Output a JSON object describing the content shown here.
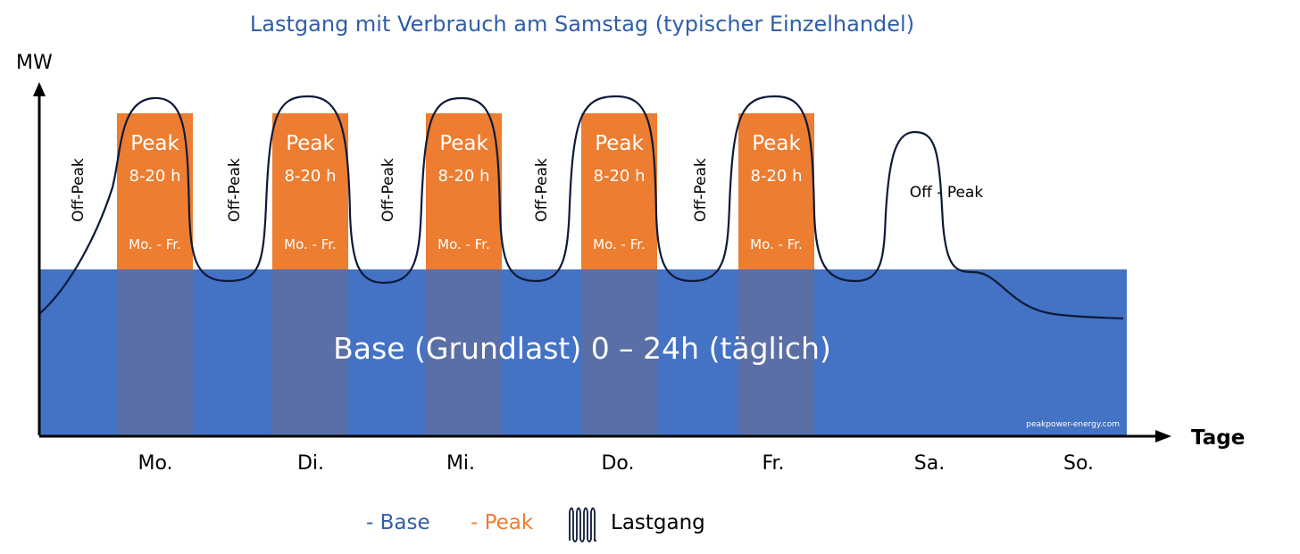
{
  "title": "Lastgang mit Verbrauch am Samstag (typischer Einzelhandel)",
  "y_axis_label": "MW",
  "x_axis_label": "Tage",
  "colors": {
    "base": "#4472c4",
    "peak": "#ed7d31",
    "overlap": "#5a6fa6",
    "curve": "#0d1a3a",
    "title": "#2f5ea8"
  },
  "base": {
    "label": "Base (Grundlast) 0 – 24h (täglich)"
  },
  "watermark": "peakpower-energy.com",
  "peak_blocks": [
    {
      "day": "Mo.",
      "title": "Peak",
      "hours": "8-20 h",
      "days": "Mo. - Fr."
    },
    {
      "day": "Di.",
      "title": "Peak",
      "hours": "8-20 h",
      "days": "Mo. - Fr."
    },
    {
      "day": "Mi.",
      "title": "Peak",
      "hours": "8-20 h",
      "days": "Mo. - Fr."
    },
    {
      "day": "Do.",
      "title": "Peak",
      "hours": "8-20 h",
      "days": "Mo. - Fr."
    },
    {
      "day": "Fr.",
      "title": "Peak",
      "hours": "8-20 h",
      "days": "Mo. - Fr."
    }
  ],
  "offpeak_labels": [
    "Off-Peak",
    "Off-Peak",
    "Off-Peak",
    "Off-Peak",
    "Off-Peak"
  ],
  "saturday_label": "Off - Peak",
  "days": [
    "Mo.",
    "Di.",
    "Mi.",
    "Do.",
    "Fr.",
    "Sa.",
    "So."
  ],
  "legend": {
    "base": "- Base",
    "peak": "- Peak",
    "load": "Lastgang"
  }
}
